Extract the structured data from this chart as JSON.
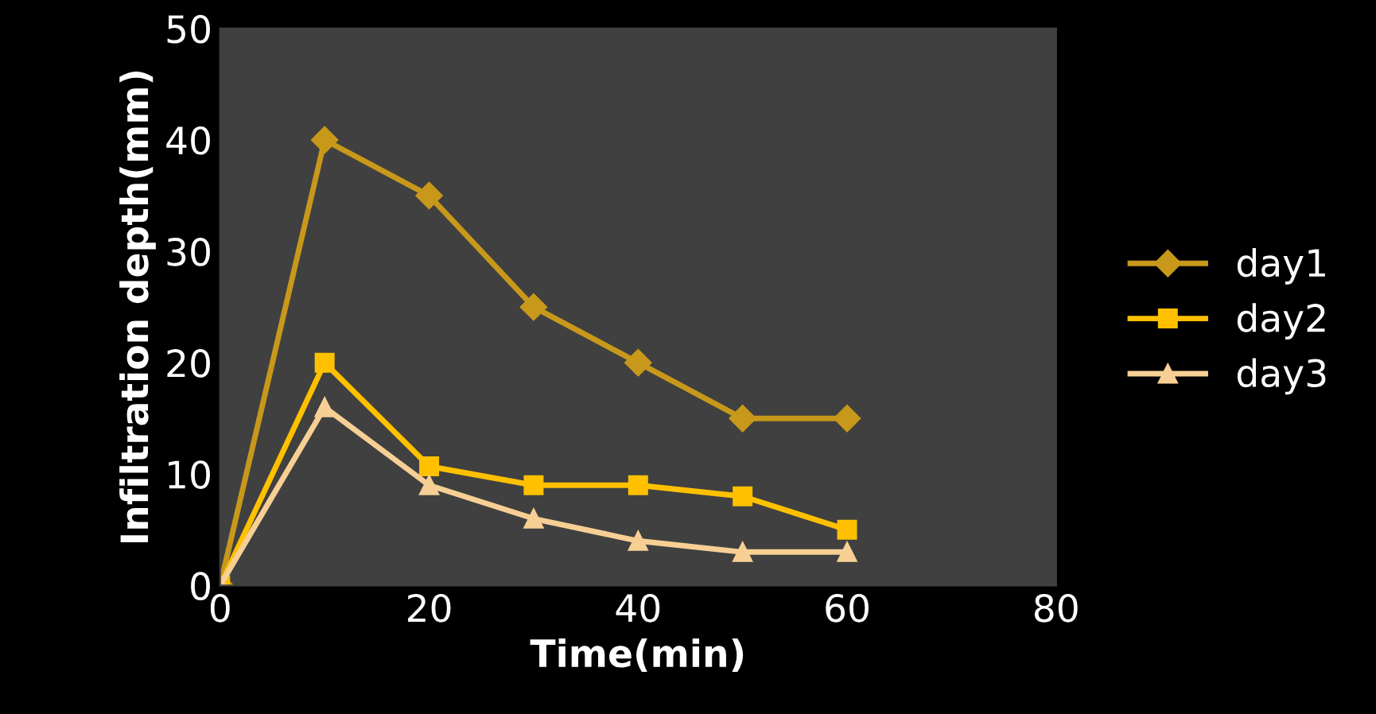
{
  "chart_data": {
    "type": "line",
    "xlabel": "Time(min)",
    "ylabel": "Infiltration depth(mm)",
    "x": [
      0,
      10,
      20,
      30,
      40,
      50,
      60
    ],
    "series": [
      {
        "name": "day1",
        "color": "#c8981a",
        "marker": "diamond",
        "values": [
          0,
          40,
          35,
          25,
          20,
          15,
          15
        ]
      },
      {
        "name": "day2",
        "color": "#ffc000",
        "marker": "square",
        "values": [
          0,
          20,
          10.7,
          9,
          9,
          8,
          5
        ]
      },
      {
        "name": "day3",
        "color": "#f7cf94",
        "marker": "triangle",
        "values": [
          0,
          16,
          9,
          6,
          4,
          3,
          3
        ]
      }
    ],
    "xlim": [
      0,
      80
    ],
    "xticks": [
      0,
      20,
      40,
      60,
      80
    ],
    "ylim": [
      0,
      50
    ],
    "yticks": [
      0,
      10,
      20,
      30,
      40,
      50
    ],
    "grid": false,
    "legend": "right",
    "line_style": "solid"
  }
}
